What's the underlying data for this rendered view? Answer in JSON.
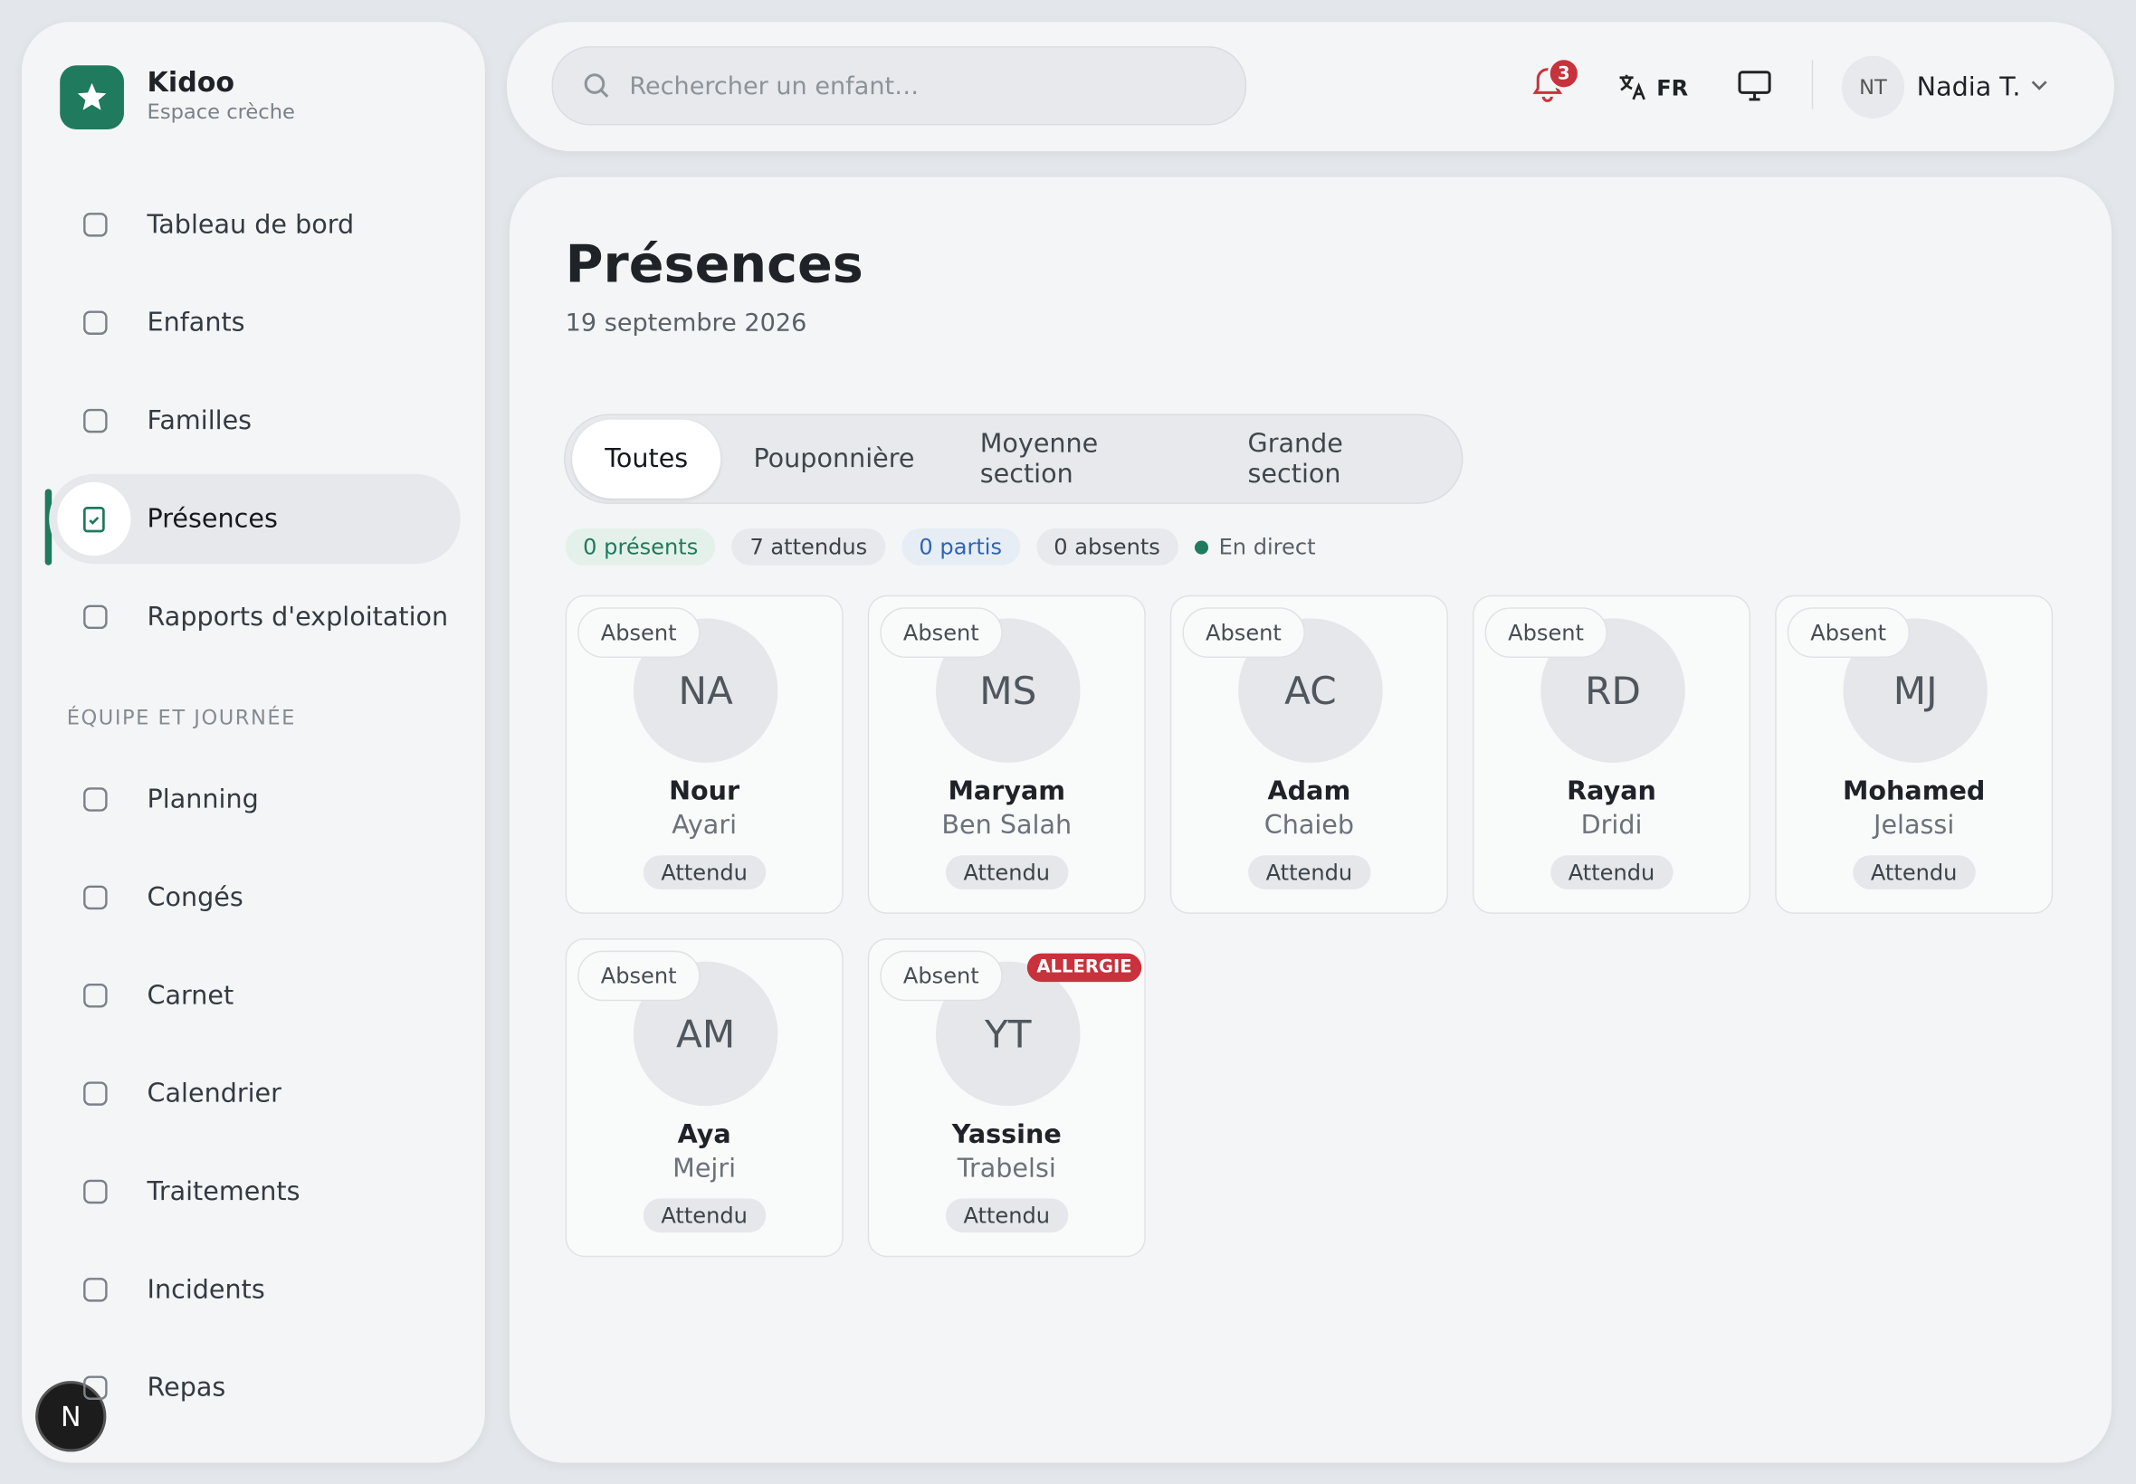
{
  "brand": {
    "name": "Kidoo",
    "subtitle": "Espace crèche"
  },
  "nav": [
    "Tableau de bord",
    "Enfants",
    "Familles",
    "Présences",
    "Rapports d'exploitation"
  ],
  "nav_section": "ÉQUIPE ET JOURNÉE",
  "nav2": [
    "Planning",
    "Congés",
    "Carnet",
    "Calendrier",
    "Traitements",
    "Incidents",
    "Repas"
  ],
  "search_placeholder": "Rechercher un enfant…",
  "notifications": "3",
  "language": "FR",
  "user": {
    "initials": "NT",
    "name": "Nadia T."
  },
  "page": {
    "title": "Présences",
    "date": "19 septembre 2026"
  },
  "tabs": [
    "Toutes",
    "Pouponnière",
    "Moyenne section",
    "Grande section"
  ],
  "counts": [
    "0 présents",
    "7 attendus",
    "0 partis",
    "0 absents"
  ],
  "live": "En direct",
  "children": [
    {
      "status": "Absent",
      "initials": "NA",
      "first": "Nour",
      "last": "Ayari",
      "badge": "Attendu"
    },
    {
      "status": "Absent",
      "initials": "MS",
      "first": "Maryam",
      "last": "Ben Salah",
      "badge": "Attendu"
    },
    {
      "status": "Absent",
      "initials": "AC",
      "first": "Adam",
      "last": "Chaieb",
      "badge": "Attendu"
    },
    {
      "status": "Absent",
      "initials": "RD",
      "first": "Rayan",
      "last": "Dridi",
      "badge": "Attendu"
    },
    {
      "status": "Absent",
      "initials": "MJ",
      "first": "Mohamed",
      "last": "Jelassi",
      "badge": "Attendu"
    },
    {
      "status": "Absent",
      "initials": "AM",
      "first": "Aya",
      "last": "Mejri",
      "badge": "Attendu"
    },
    {
      "status": "Absent",
      "initials": "YT",
      "first": "Yassine",
      "last": "Trabelsi",
      "badge": "Attendu",
      "alert": "ALLERGIE"
    }
  ],
  "dev_badge": "N"
}
